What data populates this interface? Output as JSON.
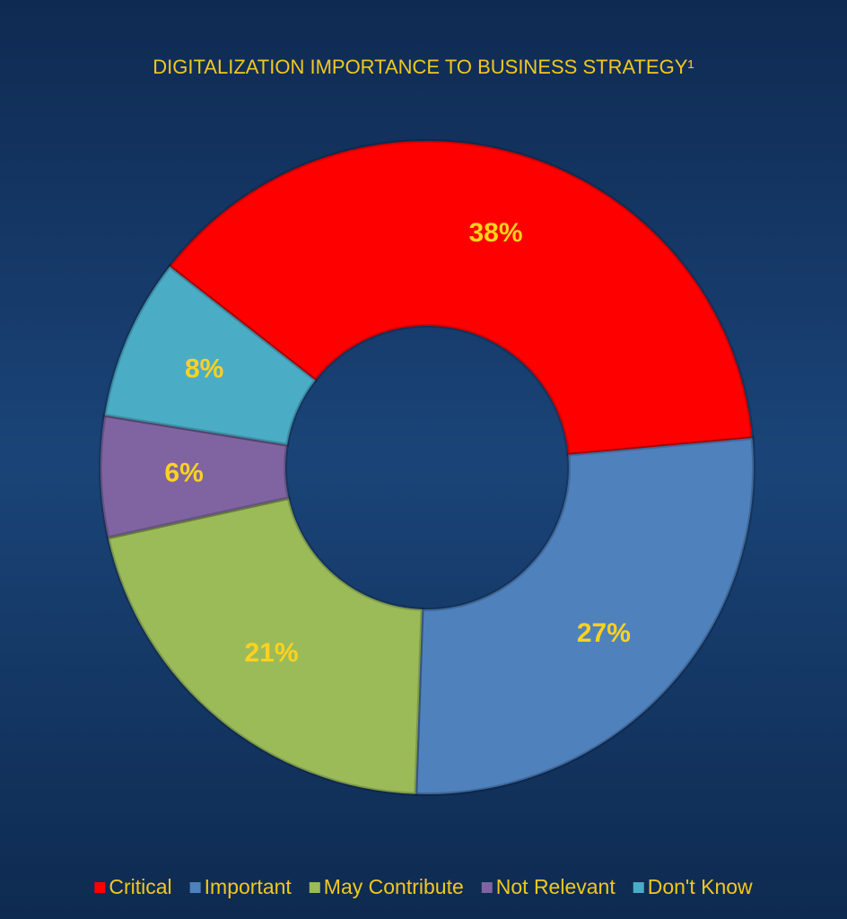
{
  "chart_data": {
    "type": "donut",
    "title": "DIGITALIZATION IMPORTANCE TO BUSINESS STRATEGY¹",
    "categories": [
      "Critical",
      "Important",
      "May Contribute",
      "Not Relevant",
      "Don't Know"
    ],
    "values": [
      38,
      27,
      21,
      6,
      8
    ],
    "value_labels": [
      "38%",
      "27%",
      "21%",
      "6%",
      "8%"
    ],
    "colors": [
      "#ff0000",
      "#4f81bd",
      "#9bbb59",
      "#8064a2",
      "#4bacc6"
    ],
    "legend": "bottom"
  }
}
